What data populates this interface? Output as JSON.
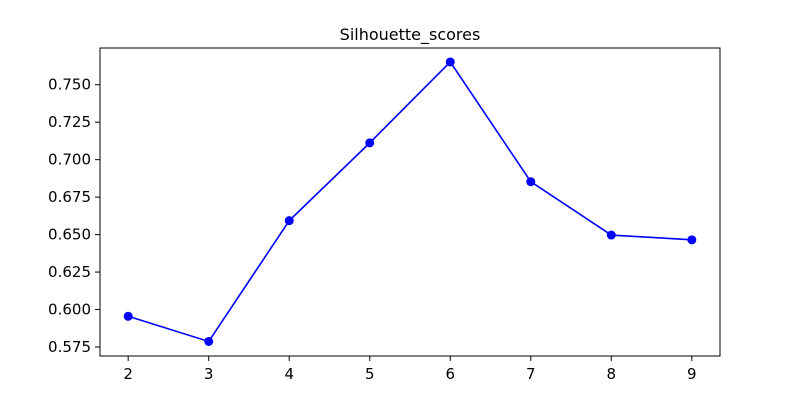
{
  "chart_data": {
    "type": "line",
    "title": "Silhouette_scores",
    "xlabel": "",
    "ylabel": "",
    "x": [
      2,
      3,
      4,
      5,
      6,
      7,
      8,
      9
    ],
    "series": [
      {
        "values": [
          0.5955,
          0.5787,
          0.6593,
          0.7112,
          0.7652,
          0.6853,
          0.6497,
          0.6465
        ],
        "color": "#0000ff"
      }
    ],
    "xlim": [
      1.65,
      9.35
    ],
    "ylim": [
      0.569,
      0.7745
    ],
    "xticks": [
      2,
      3,
      4,
      5,
      6,
      7,
      8,
      9
    ],
    "yticks": [
      0.575,
      0.6,
      0.625,
      0.65,
      0.675,
      0.7,
      0.725,
      0.75
    ],
    "ytick_labels": [
      "0.575",
      "0.600",
      "0.625",
      "0.650",
      "0.675",
      "0.700",
      "0.725",
      "0.750"
    ],
    "grid": false,
    "legend": "none",
    "marker": "circle"
  }
}
